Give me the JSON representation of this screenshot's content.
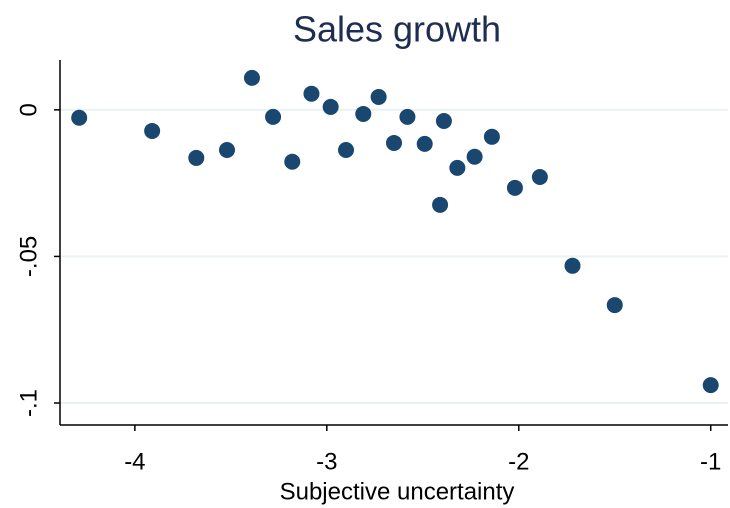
{
  "chart_data": {
    "type": "scatter",
    "title": "Sales growth",
    "x_label": "Subjective uncertainty",
    "x": [
      -4.29,
      -3.91,
      -3.68,
      -3.52,
      -3.39,
      -3.28,
      -3.18,
      -3.08,
      -2.98,
      -2.9,
      -2.81,
      -2.73,
      -2.65,
      -2.58,
      -2.49,
      -2.41,
      -2.39,
      -2.32,
      -2.23,
      -2.14,
      -2.02,
      -1.89,
      -1.72,
      -1.5,
      -1.0
    ],
    "values": [
      -0.0027,
      -0.0072,
      -0.0164,
      -0.0137,
      0.0109,
      -0.0024,
      -0.0177,
      0.0055,
      0.001,
      -0.0137,
      -0.0014,
      0.0044,
      -0.0113,
      -0.0024,
      -0.0116,
      -0.0324,
      -0.0038,
      -0.0198,
      -0.016,
      -0.0092,
      -0.0266,
      -0.0229,
      -0.0532,
      -0.0666,
      -0.0939
    ],
    "color": "#1a476f",
    "xlim": [
      -4.39,
      -0.91
    ],
    "xticks": [
      -4,
      -3,
      -2,
      -1
    ],
    "ylim": [
      -0.1075,
      0.017
    ],
    "yticks": [
      {
        "value": 0,
        "label": "0"
      },
      {
        "value": -0.05,
        "label": "-.05"
      },
      {
        "value": -0.1,
        "label": "-.1"
      }
    ],
    "grid": true
  }
}
